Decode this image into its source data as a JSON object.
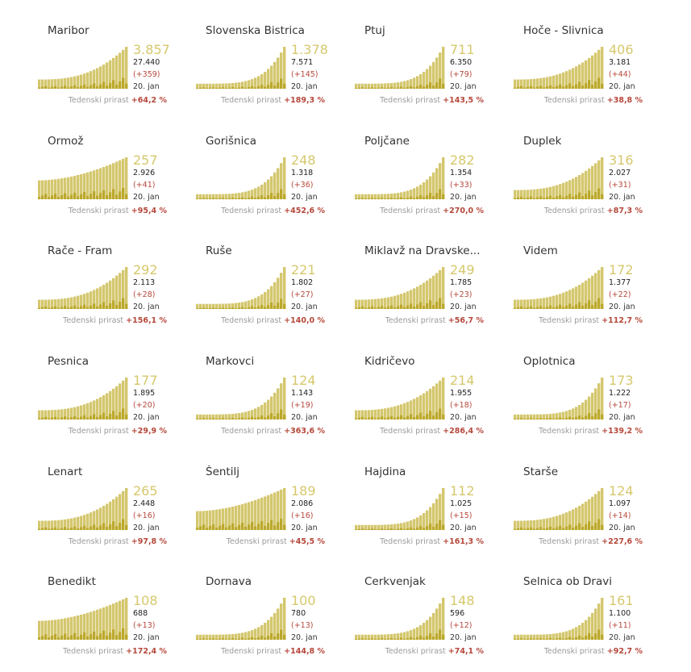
{
  "chart_data": {
    "type": "bar",
    "footer_label": "Tedenski prirast",
    "date_label": "20. jan",
    "colors": {
      "bar": "#d4c76e",
      "bar_dark": "#bba82a",
      "big_number": "#d6c86c",
      "delta": "#b5473a"
    },
    "panels": [
      {
        "name": "Maribor",
        "active": "3.857",
        "total": "27.440",
        "delta": "(+359)",
        "growth": "+64,2 %",
        "shape": "m"
      },
      {
        "name": "Slovenska Bistrica",
        "active": "1.378",
        "total": "7.571",
        "delta": "(+145)",
        "growth": "+189,3 %",
        "shape": "s"
      },
      {
        "name": "Ptuj",
        "active": "711",
        "total": "6.350",
        "delta": "(+79)",
        "growth": "+143,5 %",
        "shape": "s"
      },
      {
        "name": "Hoče - Slivnica",
        "active": "406",
        "total": "3.181",
        "delta": "(+44)",
        "growth": "+38,8 %",
        "shape": "m"
      },
      {
        "name": "Ormož",
        "active": "257",
        "total": "2.926",
        "delta": "(+41)",
        "growth": "+95,4 %",
        "shape": "f"
      },
      {
        "name": "Gorišnica",
        "active": "248",
        "total": "1.318",
        "delta": "(+36)",
        "growth": "+452,6 %",
        "shape": "s"
      },
      {
        "name": "Poljčane",
        "active": "282",
        "total": "1.354",
        "delta": "(+33)",
        "growth": "+270,0 %",
        "shape": "s"
      },
      {
        "name": "Duplek",
        "active": "316",
        "total": "2.027",
        "delta": "(+31)",
        "growth": "+87,3 %",
        "shape": "m"
      },
      {
        "name": "Rače - Fram",
        "active": "292",
        "total": "2.113",
        "delta": "(+28)",
        "growth": "+156,1 %",
        "shape": "m"
      },
      {
        "name": "Ruše",
        "active": "221",
        "total": "1.802",
        "delta": "(+27)",
        "growth": "+140,0 %",
        "shape": "s"
      },
      {
        "name": "Miklavž na Dravske...",
        "active": "249",
        "total": "1.785",
        "delta": "(+23)",
        "growth": "+56,7 %",
        "shape": "m"
      },
      {
        "name": "Videm",
        "active": "172",
        "total": "1.377",
        "delta": "(+22)",
        "growth": "+112,7 %",
        "shape": "m"
      },
      {
        "name": "Pesnica",
        "active": "177",
        "total": "1.895",
        "delta": "(+20)",
        "growth": "+29,9 %",
        "shape": "m"
      },
      {
        "name": "Markovci",
        "active": "124",
        "total": "1.143",
        "delta": "(+19)",
        "growth": "+363,6 %",
        "shape": "s"
      },
      {
        "name": "Kidričevo",
        "active": "214",
        "total": "1.955",
        "delta": "(+18)",
        "growth": "+286,4 %",
        "shape": "m"
      },
      {
        "name": "Oplotnica",
        "active": "173",
        "total": "1.222",
        "delta": "(+17)",
        "growth": "+139,2 %",
        "shape": "s"
      },
      {
        "name": "Lenart",
        "active": "265",
        "total": "2.448",
        "delta": "(+16)",
        "growth": "+97,8 %",
        "shape": "m"
      },
      {
        "name": "Šentilj",
        "active": "189",
        "total": "2.086",
        "delta": "(+16)",
        "growth": "+45,5 %",
        "shape": "f"
      },
      {
        "name": "Hajdina",
        "active": "112",
        "total": "1.025",
        "delta": "(+15)",
        "growth": "+161,3 %",
        "shape": "s"
      },
      {
        "name": "Starše",
        "active": "124",
        "total": "1.097",
        "delta": "(+14)",
        "growth": "+227,6 %",
        "shape": "m"
      },
      {
        "name": "Benedikt",
        "active": "108",
        "total": "688",
        "delta": "(+13)",
        "growth": "+172,4 %",
        "shape": "f"
      },
      {
        "name": "Dornava",
        "active": "100",
        "total": "780",
        "delta": "(+13)",
        "growth": "+144,8 %",
        "shape": "s"
      },
      {
        "name": "Cerkvenjak",
        "active": "148",
        "total": "596",
        "delta": "(+12)",
        "growth": "+74,1 %",
        "shape": "s"
      },
      {
        "name": "Selnica ob Dravi",
        "active": "161",
        "total": "1.100",
        "delta": "(+11)",
        "growth": "+92,7 %",
        "shape": "s"
      }
    ]
  }
}
